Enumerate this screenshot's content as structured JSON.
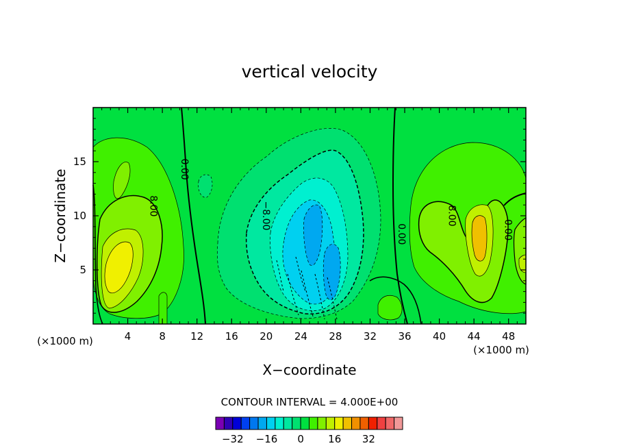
{
  "chart_data": {
    "type": "contour",
    "title": "vertical velocity",
    "xlabel": "X−coordinate",
    "ylabel": "Z−coordinate",
    "x_unit_left": "(×1000 m)",
    "x_unit_right": "(×1000 m)",
    "xlim": [
      0,
      50
    ],
    "ylim": [
      0,
      20
    ],
    "x_ticks": [
      4,
      8,
      12,
      16,
      20,
      24,
      28,
      32,
      36,
      40,
      44,
      48
    ],
    "x_tick_labels": [
      "4",
      "8",
      "12",
      "16",
      "20",
      "24",
      "28",
      "32",
      "36",
      "40",
      "44",
      "48"
    ],
    "y_ticks": [
      5,
      10,
      15
    ],
    "y_tick_labels": [
      "5",
      "10",
      "15"
    ],
    "contour_interval_text": "CONTOUR INTERVAL = 4.000E+00",
    "contour_labels": [
      {
        "text": "0.00",
        "x": 10.6,
        "y": 14.3
      },
      {
        "text": "8.00",
        "x": 7.0,
        "y": 10.9
      },
      {
        "text": "−8.00",
        "x": 20.0,
        "y": 10.0
      },
      {
        "text": "0.00",
        "x": 35.7,
        "y": 8.3
      },
      {
        "text": "8.00",
        "x": 41.5,
        "y": 10.0
      },
      {
        "text": "0.00",
        "x": 48.0,
        "y": 8.7
      }
    ],
    "colorbar": {
      "colors": [
        "#7a00b4",
        "#3000b4",
        "#0000d8",
        "#0040f0",
        "#0078f0",
        "#00a8f0",
        "#00d0f0",
        "#00f0d0",
        "#00e8a0",
        "#00e070",
        "#00e040",
        "#40f000",
        "#80f000",
        "#c0f000",
        "#f0f000",
        "#f0c000",
        "#f09000",
        "#f06000",
        "#f02000",
        "#f04040",
        "#f06868",
        "#f09898"
      ],
      "tick_labels": [
        "−32",
        "−16",
        "0",
        "16",
        "32"
      ],
      "tick_values": [
        -32,
        -16,
        0,
        16,
        32
      ]
    }
  }
}
